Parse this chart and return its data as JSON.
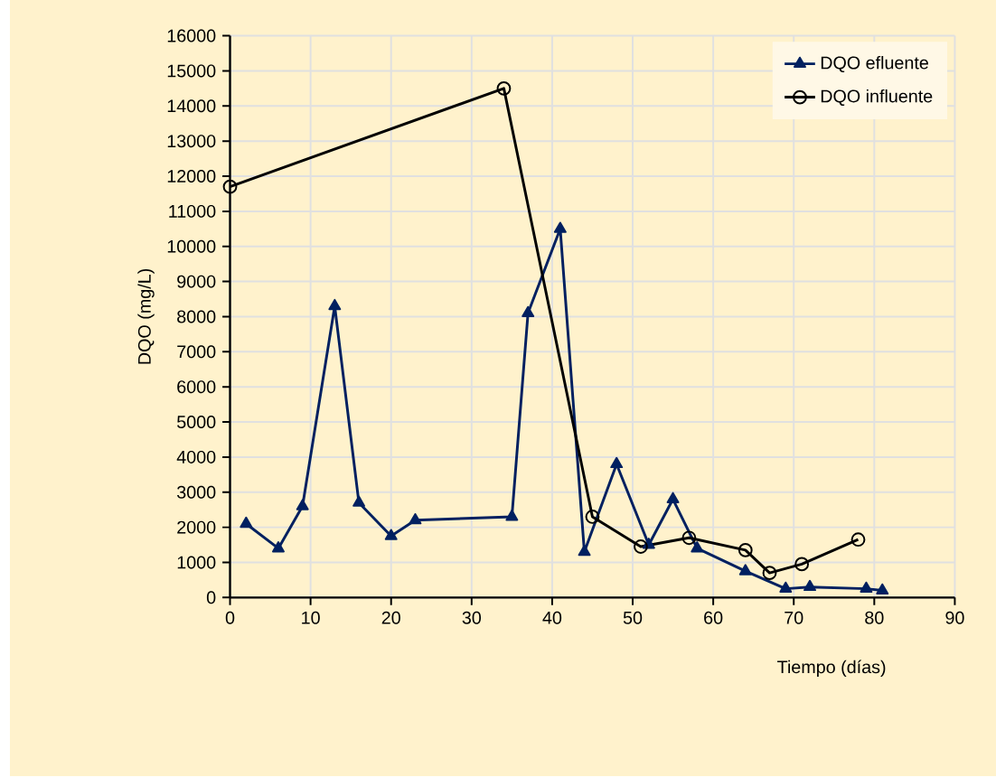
{
  "chart_data": {
    "type": "line",
    "xlabel": "Tiempo (días)",
    "ylabel": "DQO (mg/L)",
    "xlim": [
      0,
      90
    ],
    "xticks": [
      0,
      10,
      20,
      30,
      40,
      50,
      60,
      70,
      80,
      90
    ],
    "ylim": [
      0,
      16000
    ],
    "yticks": [
      0,
      1000,
      2000,
      3000,
      4000,
      5000,
      6000,
      7000,
      8000,
      9000,
      10000,
      11000,
      12000,
      13000,
      14000,
      15000,
      16000
    ],
    "grid": true,
    "legend": "top right",
    "series": [
      {
        "name": "DQO efluente",
        "color": "#002060",
        "marker": "triangle",
        "x": [
          2,
          6,
          9,
          13,
          16,
          20,
          23,
          35,
          37,
          41,
          44,
          48,
          52,
          55,
          58,
          64,
          69,
          72,
          79,
          81
        ],
        "values": [
          2100,
          1400,
          2600,
          8300,
          2700,
          1750,
          2200,
          2300,
          8100,
          10500,
          1300,
          3800,
          1500,
          2800,
          1400,
          750,
          250,
          300,
          250,
          200
        ]
      },
      {
        "name": "DQO influente",
        "color": "#000000",
        "marker": "circle",
        "x": [
          0,
          34,
          45,
          51,
          57,
          64,
          67,
          71,
          78
        ],
        "values": [
          11700,
          14500,
          2300,
          1450,
          1700,
          1350,
          700,
          950,
          1650
        ]
      }
    ]
  }
}
